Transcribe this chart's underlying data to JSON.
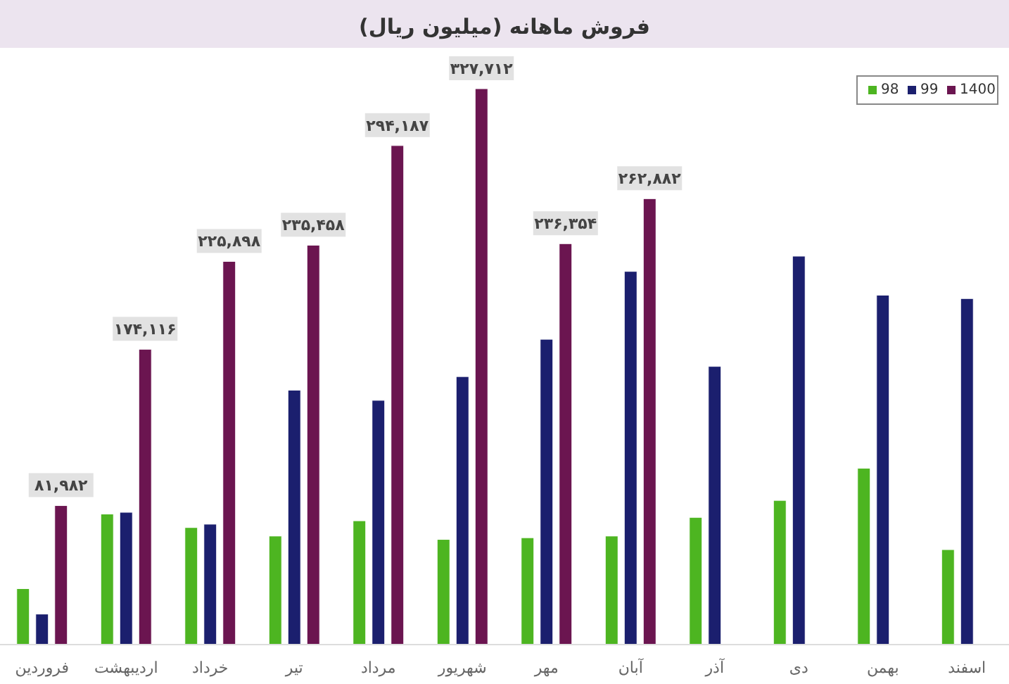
{
  "chart_data": {
    "type": "bar",
    "title": "فروش ماهانه (میلیون ریال)",
    "categories": [
      "فروردین",
      "اردیبهشت",
      "خرداد",
      "تیر",
      "مرداد",
      "شهریور",
      "مهر",
      "آبان",
      "آذر",
      "دی",
      "بهمن",
      "اسفند"
    ],
    "series": [
      {
        "name": "98",
        "color": "#4db521",
        "values": [
          33000,
          77000,
          69000,
          64000,
          73000,
          62000,
          63000,
          64000,
          75000,
          85000,
          104000,
          56000
        ]
      },
      {
        "name": "99",
        "color": "#1b1f6e",
        "values": [
          18000,
          78000,
          71000,
          150000,
          144000,
          158000,
          180000,
          220000,
          164000,
          229000,
          206000,
          204000
        ]
      },
      {
        "name": "1400",
        "color": "#6b1550",
        "values": [
          81982,
          174116,
          225898,
          235458,
          294187,
          327712,
          236354,
          262882,
          null,
          null,
          null,
          null
        ],
        "value_labels": [
          "۸۱,۹۸۲",
          "۱۷۴,۱۱۶",
          "۲۲۵,۸۹۸",
          "۲۳۵,۴۵۸",
          "۲۹۴,۱۸۷",
          "۳۲۷,۷۱۲",
          "۲۳۶,۳۵۴",
          "۲۶۲,۸۸۲",
          null,
          null,
          null,
          null
        ]
      }
    ],
    "legend": "top right"
  }
}
